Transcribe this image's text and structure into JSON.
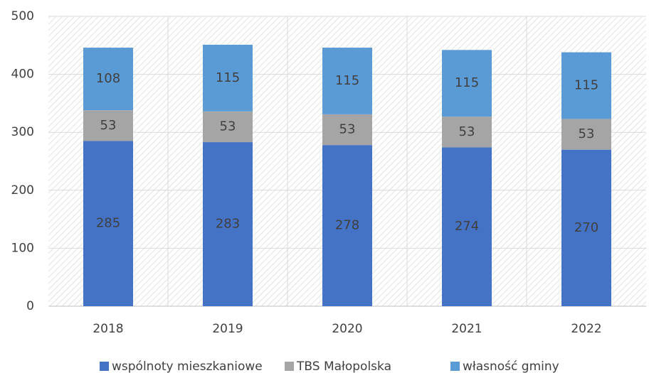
{
  "chart_data": {
    "type": "bar",
    "stacked": true,
    "categories": [
      "2018",
      "2019",
      "2020",
      "2021",
      "2022"
    ],
    "series": [
      {
        "name": "wspólnoty mieszkaniowe",
        "color": "#4472c4",
        "values": [
          285,
          283,
          278,
          274,
          270
        ]
      },
      {
        "name": "TBS Małopolska",
        "color": "#a5a5a5",
        "values": [
          53,
          53,
          53,
          53,
          53
        ]
      },
      {
        "name": "własność gminy",
        "color": "#5b9bd5",
        "values": [
          108,
          115,
          115,
          115,
          115
        ]
      }
    ],
    "ylim": [
      0,
      500
    ],
    "yticks": [
      0,
      100,
      200,
      300,
      400,
      500
    ],
    "grid": true,
    "legend": "bottom"
  }
}
